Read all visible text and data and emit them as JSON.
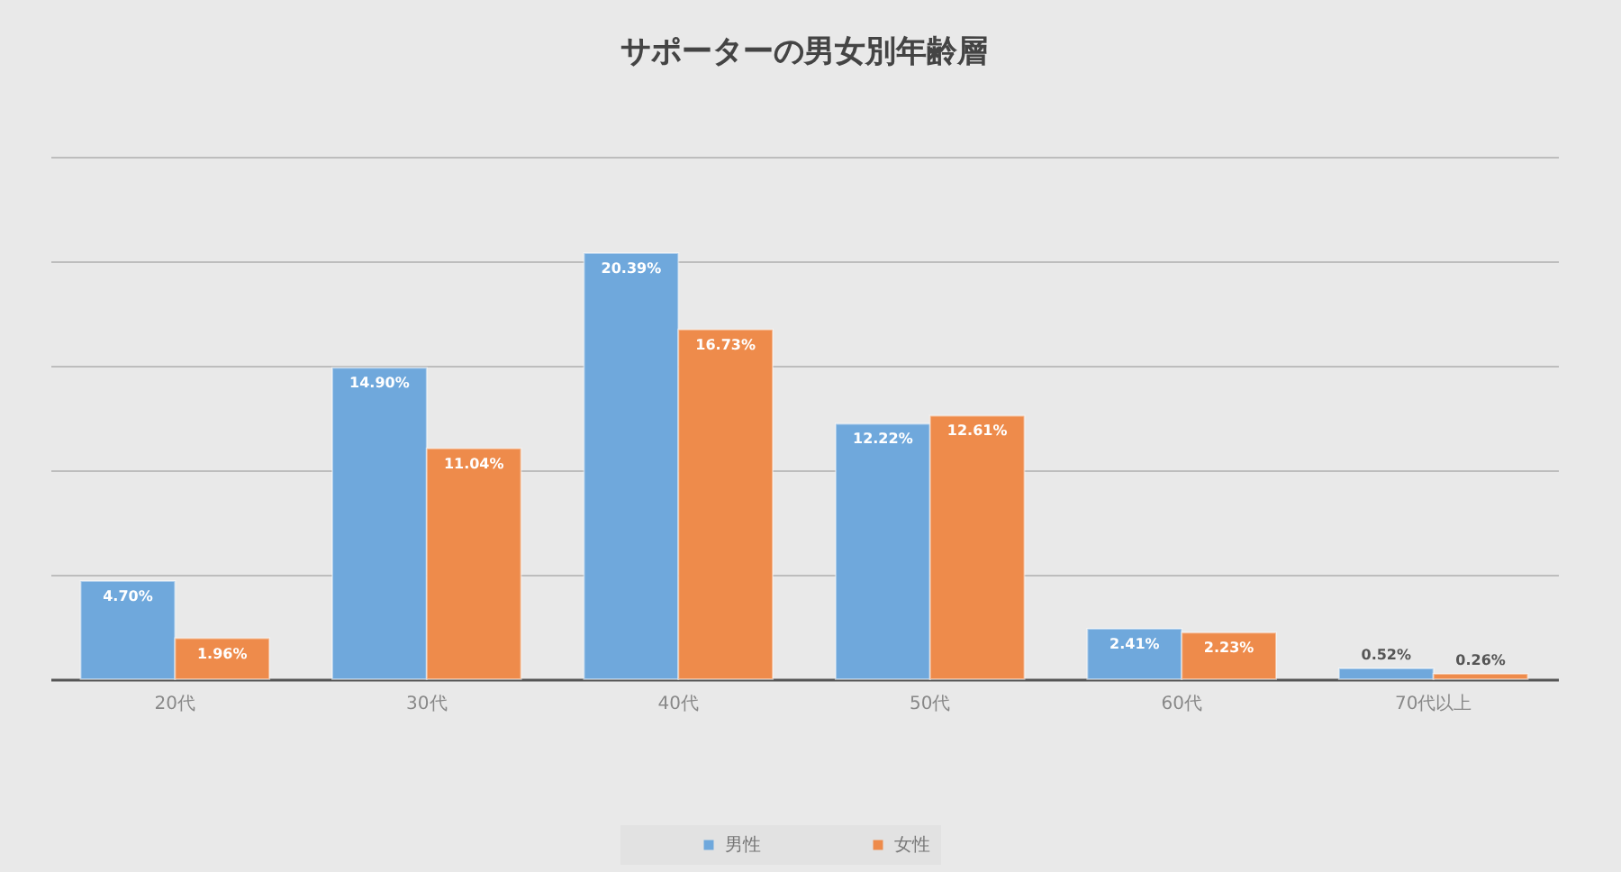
{
  "chart_data": {
    "type": "bar",
    "title": "サポーターの男女別年齢層",
    "categories": [
      "20代",
      "30代",
      "40代",
      "50代",
      "60代",
      "70代以上"
    ],
    "series": [
      {
        "name": "男性",
        "color": "#6fa8dc",
        "values": [
          4.7,
          14.9,
          20.39,
          12.22,
          2.41,
          0.52
        ],
        "value_labels": [
          "4.70%",
          "14.90%",
          "20.39%",
          "12.22%",
          "2.41%",
          "0.52%"
        ]
      },
      {
        "name": "女性",
        "color": "#ee8b4b",
        "values": [
          1.96,
          11.04,
          16.73,
          12.61,
          2.23,
          0.26
        ],
        "value_labels": [
          "1.96%",
          "11.04%",
          "16.73%",
          "12.61%",
          "2.23%",
          "0.26%"
        ]
      }
    ],
    "ylim": [
      0,
      25
    ],
    "yticks": [
      {
        "value": 0,
        "label": null
      },
      {
        "value": 5,
        "label": null
      },
      {
        "value": 10,
        "label": null
      },
      {
        "value": 15,
        "label": null
      },
      {
        "value": 20,
        "label": null
      },
      {
        "value": 25,
        "label": null
      }
    ],
    "tick_labels": "x",
    "grid": "y",
    "legend": "bottom"
  }
}
